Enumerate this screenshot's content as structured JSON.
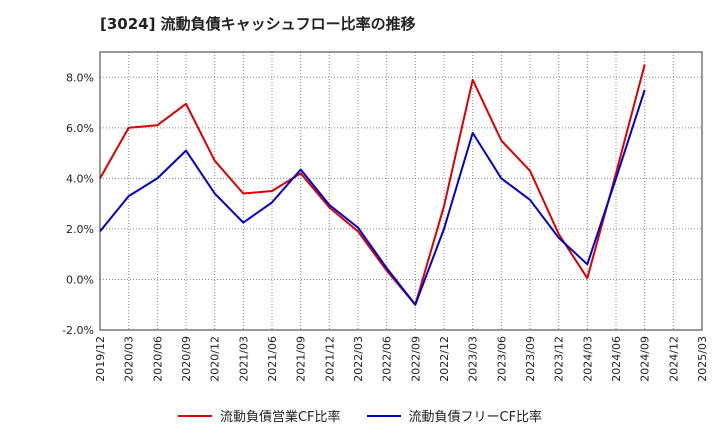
{
  "chart_data": {
    "type": "line",
    "title": "[3024]  流動負債キャッシュフロー比率の推移",
    "xlabel": "",
    "ylabel": "",
    "ylim": [
      -2.0,
      9.0
    ],
    "yticks": [
      "-2.0%",
      "0.0%",
      "2.0%",
      "4.0%",
      "6.0%",
      "8.0%"
    ],
    "ytick_values": [
      -2,
      0,
      2,
      4,
      6,
      8
    ],
    "xticks": [
      "2019/12",
      "2020/03",
      "2020/06",
      "2020/09",
      "2020/12",
      "2021/03",
      "2021/06",
      "2021/09",
      "2021/12",
      "2022/03",
      "2022/06",
      "2022/09",
      "2022/12",
      "2023/03",
      "2023/06",
      "2023/09",
      "2023/12",
      "2024/03",
      "2024/06",
      "2024/09",
      "2024/12",
      "2025/03"
    ],
    "grid": true,
    "legend_position": "bottom",
    "series": [
      {
        "name": "流動負債営業CF比率",
        "color": "#dd0000",
        "values": [
          4.0,
          6.0,
          6.1,
          6.95,
          4.7,
          3.4,
          3.5,
          4.2,
          2.85,
          1.9,
          0.35,
          -1.0,
          2.9,
          7.9,
          5.5,
          4.3,
          1.8,
          0.05,
          4.2,
          8.5,
          null,
          null
        ]
      },
      {
        "name": "流動負債フリーCF比率",
        "color": "#0000cc",
        "values": [
          1.9,
          3.3,
          4.0,
          5.1,
          3.4,
          2.25,
          3.05,
          4.35,
          2.95,
          2.05,
          0.45,
          -1.0,
          2.0,
          5.8,
          4.0,
          3.15,
          1.65,
          0.6,
          4.0,
          7.5,
          null,
          null
        ]
      }
    ]
  }
}
